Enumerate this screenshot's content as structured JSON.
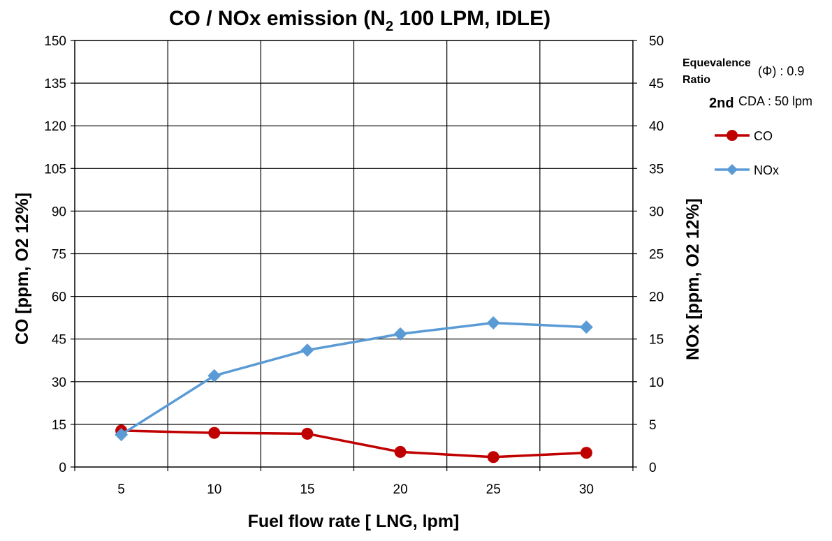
{
  "chart_data": {
    "type": "line",
    "title_main": "CO / NOx emission (N",
    "title_sub": "2",
    "title_rest": " 100 LPM, IDLE)",
    "xlabel": "Fuel flow rate [ LNG, lpm]",
    "ylabel_left": "CO  [ppm, O2 12%]",
    "ylabel_right": "NOx [ppm, O2 12%]",
    "x": [
      5,
      10,
      15,
      20,
      25,
      30
    ],
    "x_tick_labels": [
      "5",
      "10",
      "15",
      "20",
      "25",
      "30"
    ],
    "ylim_left": [
      0,
      150
    ],
    "y_ticks_left": [
      "0",
      "15",
      "30",
      "45",
      "60",
      "75",
      "90",
      "105",
      "120",
      "135",
      "150"
    ],
    "ylim_right": [
      0,
      50
    ],
    "y_ticks_right": [
      "0",
      "5",
      "10",
      "15",
      "20",
      "25",
      "30",
      "35",
      "40",
      "45",
      "50"
    ],
    "grid": true,
    "legend_position": "right",
    "series": [
      {
        "name": "CO",
        "axis": "left",
        "color": "#c00000",
        "marker": "circle",
        "values": [
          12.8,
          12.0,
          11.7,
          5.3,
          3.5,
          5.0
        ]
      },
      {
        "name": "NOx",
        "axis": "right",
        "color": "#5b9bd5",
        "marker": "diamond",
        "values": [
          3.8,
          10.7,
          13.7,
          15.6,
          16.9,
          16.4
        ]
      }
    ],
    "annotations": {
      "equivalence_line1": "Equevalence",
      "equivalence_line2": "Ratio",
      "equivalence_value": "(Φ) : 0.9",
      "cda_prefix": "2nd",
      "cda_value": "CDA : 50 lpm"
    }
  }
}
